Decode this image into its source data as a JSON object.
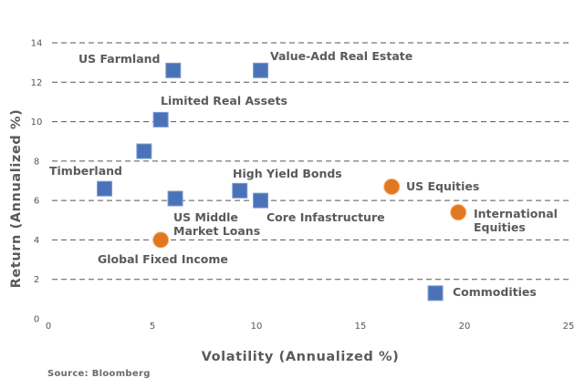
{
  "chart_data": {
    "type": "scatter",
    "xlabel": "Volatility (Annualized %)",
    "ylabel": "Return (Annualized %)",
    "xlim": [
      0,
      25
    ],
    "ylim": [
      0,
      14
    ],
    "x_ticks": [
      0,
      5,
      10,
      15,
      20,
      25
    ],
    "y_ticks": [
      0,
      2,
      4,
      6,
      8,
      10,
      12,
      14
    ],
    "grid": "horizontal-dashed",
    "colors": {
      "square": "#4a72b8",
      "circle": "#e0781f",
      "grid": "#555555"
    },
    "points": [
      {
        "label": "US Farmland",
        "x": 6.0,
        "y": 12.6,
        "marker": "square"
      },
      {
        "label": "Value-Add Real Estate",
        "x": 10.2,
        "y": 12.6,
        "marker": "square"
      },
      {
        "label": "Limited Real Assets",
        "x": 5.4,
        "y": 10.1,
        "marker": "square"
      },
      {
        "label": "",
        "x": 4.6,
        "y": 8.5,
        "marker": "square"
      },
      {
        "label": "Timberland",
        "x": 2.7,
        "y": 6.6,
        "marker": "square"
      },
      {
        "label": "US Middle Market Loans",
        "x": 6.1,
        "y": 6.1,
        "marker": "square"
      },
      {
        "label": "High Yield Bonds",
        "x": 9.2,
        "y": 6.5,
        "marker": "square"
      },
      {
        "label": "Core Infastructure",
        "x": 10.2,
        "y": 6.0,
        "marker": "square"
      },
      {
        "label": "Global Fixed Income",
        "x": 5.4,
        "y": 4.0,
        "marker": "circle"
      },
      {
        "label": "US Equities",
        "x": 16.5,
        "y": 6.7,
        "marker": "circle"
      },
      {
        "label": "International Equities",
        "x": 19.7,
        "y": 5.4,
        "marker": "circle"
      },
      {
        "label": "Commodities",
        "x": 18.6,
        "y": 1.3,
        "marker": "square"
      }
    ]
  },
  "source": "Source: Bloomberg"
}
